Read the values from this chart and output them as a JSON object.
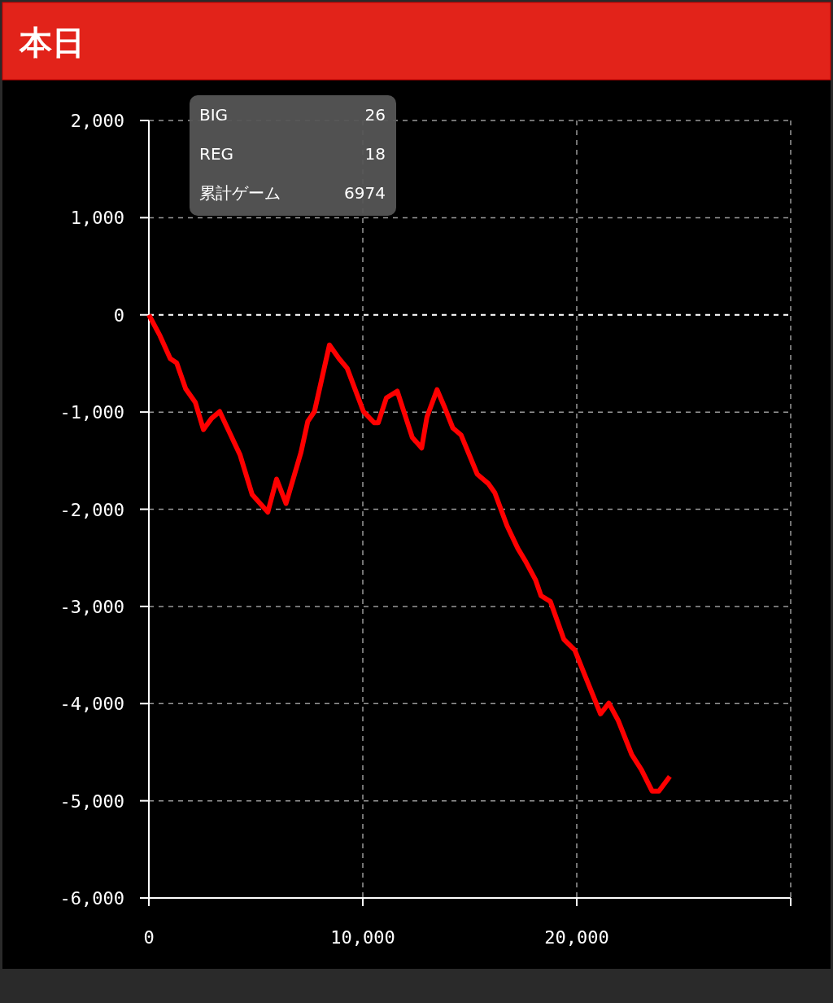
{
  "chart_data": {
    "type": "line",
    "title": "本日",
    "annotations": [
      "BIG",
      "26",
      "REG",
      "18",
      "累計ゲーム",
      "6974"
    ],
    "x": [
      0,
      520,
      1000,
      1300,
      1720,
      2170,
      2550,
      2930,
      3310,
      3810,
      4260,
      4830,
      5560,
      5970,
      6410,
      7110,
      7430,
      7740,
      8440,
      8890,
      9270,
      10030,
      10530,
      10720,
      11100,
      11610,
      12310,
      12750,
      13000,
      13470,
      13830,
      14210,
      14590,
      15350,
      15860,
      16170,
      16740,
      17250,
      17630,
      18070,
      18330,
      18770,
      19400,
      19910,
      20290,
      21110,
      21500,
      21940,
      22570,
      23020,
      23520,
      23840,
      24350
    ],
    "series": [
      {
        "color": "#ff0000",
        "line_style": "solid",
        "values": [
          0,
          -215,
          -450,
          -495,
          -760,
          -900,
          -1180,
          -1065,
          -995,
          -1230,
          -1440,
          -1850,
          -2030,
          -1690,
          -1940,
          -1415,
          -1095,
          -995,
          -310,
          -450,
          -550,
          -995,
          -1110,
          -1110,
          -855,
          -785,
          -1260,
          -1370,
          -1050,
          -770,
          -955,
          -1165,
          -1235,
          -1640,
          -1735,
          -1830,
          -2170,
          -2405,
          -2545,
          -2725,
          -2890,
          -2950,
          -3340,
          -3450,
          -3660,
          -4105,
          -3995,
          -4175,
          -4525,
          -4680,
          -4900,
          -4900,
          -4750
        ]
      }
    ],
    "xlim": [
      0,
      30000
    ],
    "ylim": [
      -6000,
      2000
    ],
    "xticks": [
      0,
      {
        "value": 10000,
        "label": "10,000"
      },
      {
        "value": 20000,
        "label": "20,000"
      },
      {
        "value": 30000,
        "label": null
      }
    ],
    "yticks": [
      {
        "value": -6000,
        "label": "-6,000"
      },
      {
        "value": -5000,
        "label": "-5,000"
      },
      {
        "value": -4000,
        "label": "-4,000"
      },
      {
        "value": -3000,
        "label": "-3,000"
      },
      {
        "value": -2000,
        "label": "-2,000"
      },
      {
        "value": -1000,
        "label": "-1,000"
      },
      0,
      {
        "value": 1000,
        "label": "1,000"
      },
      {
        "value": 2000,
        "label": "2,000"
      }
    ],
    "ref_lines": [
      {
        "axis": "y",
        "value": 0,
        "color": "#ffffff",
        "line_style": "dashed"
      }
    ],
    "grid": true
  }
}
